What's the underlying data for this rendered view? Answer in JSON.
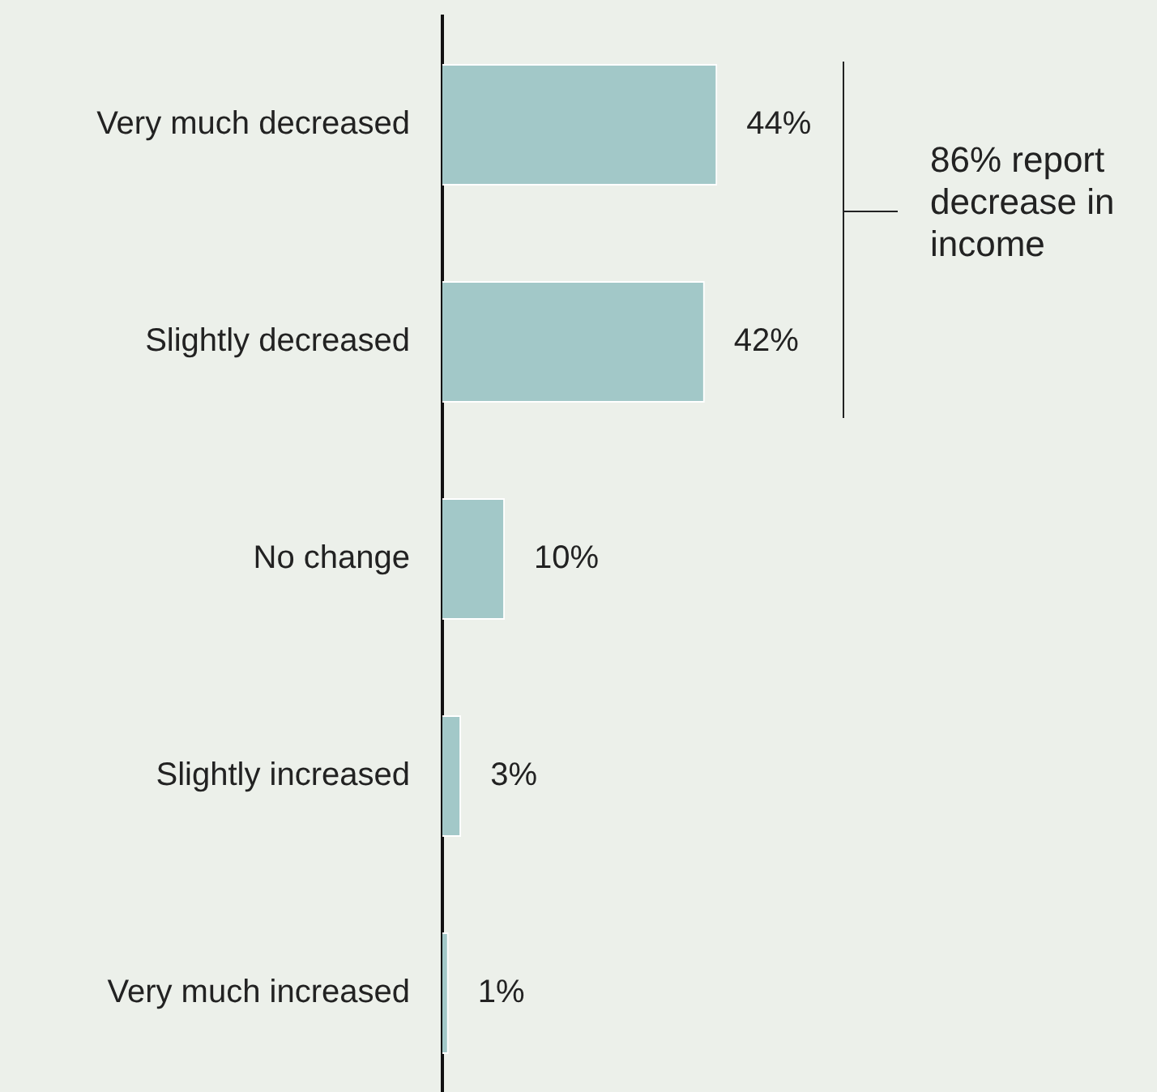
{
  "chart_data": {
    "type": "bar",
    "orientation": "horizontal",
    "categories": [
      "Very much decreased",
      "Slightly decreased",
      "No change",
      "Slightly increased",
      "Very much increased"
    ],
    "values": [
      44,
      42,
      10,
      3,
      1
    ],
    "value_labels": [
      "44%",
      "42%",
      "10%",
      "3%",
      "1%"
    ],
    "color": "#a2c8c8",
    "annotations": [
      "86% report decrease in income"
    ]
  }
}
